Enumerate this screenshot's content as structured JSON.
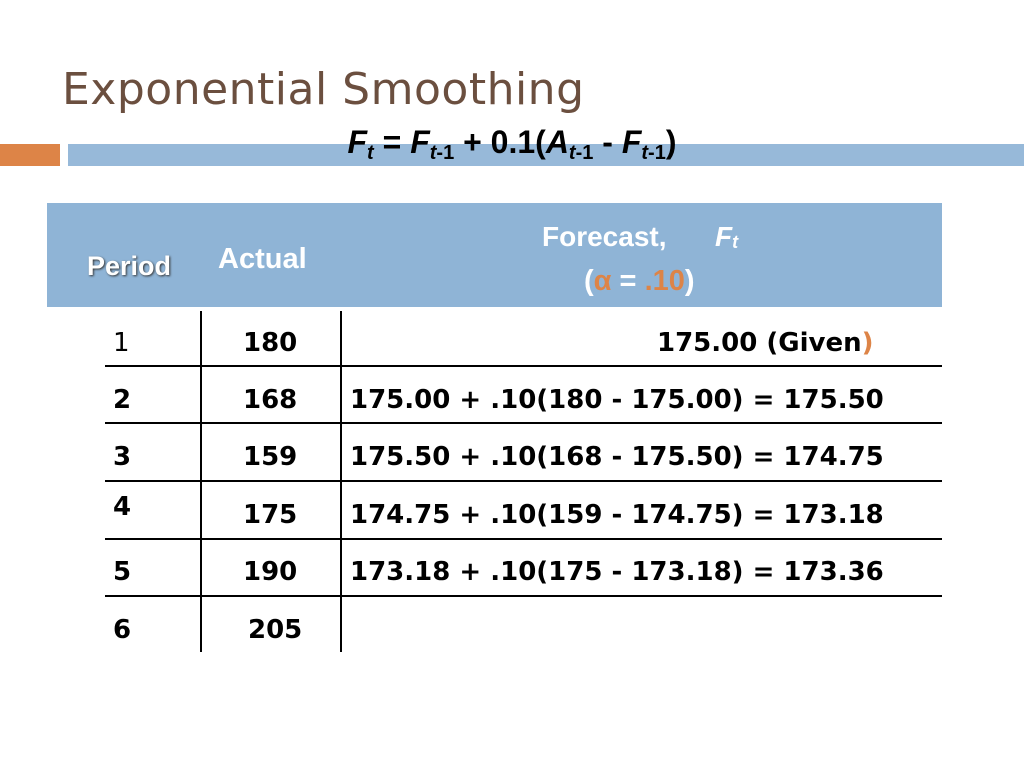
{
  "title": "Exponential Smoothing",
  "formula": {
    "F": "F",
    "t": "t",
    "eq": " = ",
    "F2": "F",
    "t1": "t",
    "m1": "-1",
    "plus": " + 0.1(",
    "A": "A",
    "t2": "t",
    "m2": "-1",
    "minus": " - ",
    "F3": "F",
    "t3": "t",
    "m3": "-1",
    "close": ")"
  },
  "table": {
    "headers": {
      "period": "Period",
      "actual": "Actual",
      "forecast": "Forecast,",
      "ft_F": "F",
      "ft_t": "t",
      "alpha_open": "(",
      "alpha": "α",
      "alpha_eq": "  = ",
      "alpha_val": ".10",
      "alpha_close": ")"
    },
    "rows": [
      {
        "period": "1",
        "actual": "180",
        "forecast": "175.00 (Given",
        "forecast_tail": ")"
      },
      {
        "period": "2",
        "actual": "168",
        "forecast": "175.00 + .10(180 - 175.00) = 175.50"
      },
      {
        "period": "3",
        "actual": "159",
        "forecast": "175.50 + .10(168 - 175.50) = 174.75"
      },
      {
        "period": "4",
        "actual": "175",
        "forecast": "174.75 + .10(159 - 174.75) = 173.18"
      },
      {
        "period": "5",
        "actual": "190",
        "forecast": "173.18 + .10(175 - 173.18) = 173.36"
      },
      {
        "period": "6",
        "actual": "205",
        "forecast": ""
      }
    ]
  },
  "colors": {
    "title": "#6b4f3f",
    "accent_orange": "#dd8447",
    "accent_blue": "#97b9d9",
    "header_bg": "#8fb4d6"
  }
}
